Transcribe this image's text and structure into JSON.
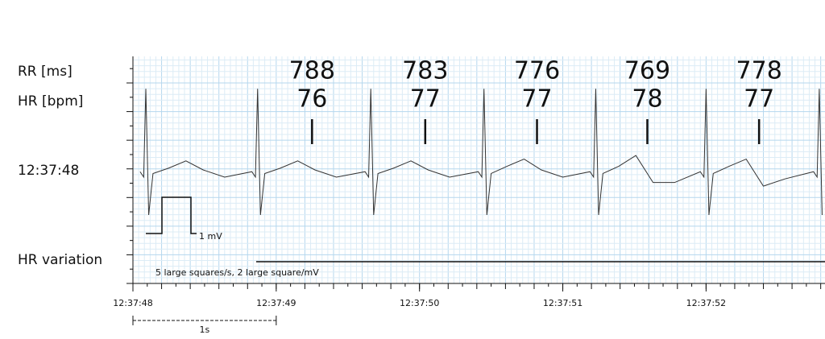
{
  "chart_data": {
    "type": "ecg",
    "row_labels": {
      "rr": "RR [ms]",
      "hr": "HR [bpm]",
      "time": "12:37:48",
      "hr_variation": "HR variation"
    },
    "calibration_label": "1 mV",
    "scale_note": "5 large squares/s, 2 large square/mV",
    "scale_bar_label": "1s",
    "xlim": [
      0,
      4.83
    ],
    "ylim": [
      -3.1,
      3.2
    ],
    "xticks": [
      {
        "value": 0,
        "label": "12:37:48"
      },
      {
        "value": 1,
        "label": "12:37:49"
      },
      {
        "value": 2,
        "label": "12:37:50"
      },
      {
        "value": 3,
        "label": "12:37:51"
      },
      {
        "value": 4,
        "label": "12:37:52"
      }
    ],
    "color": "#333333",
    "grid": true,
    "x": [
      0.05,
      0.075,
      0.09,
      0.11,
      0.14,
      0.25,
      0.37,
      0.49,
      0.64,
      0.83,
      0.855,
      0.87,
      0.89,
      0.92,
      1.03,
      1.15,
      1.27,
      1.42,
      1.62,
      1.645,
      1.66,
      1.68,
      1.71,
      1.82,
      1.94,
      2.06,
      2.21,
      2.41,
      2.435,
      2.45,
      2.47,
      2.5,
      2.61,
      2.73,
      2.85,
      3.0,
      3.19,
      3.215,
      3.23,
      3.25,
      3.28,
      3.39,
      3.51,
      3.63,
      3.78,
      3.96,
      3.985,
      4.0,
      4.02,
      4.05,
      4.16,
      4.28,
      4.4,
      4.55,
      4.75,
      4.775,
      4.79,
      4.81
    ],
    "values": [
      0,
      -0.15,
      2.3,
      -1.2,
      -0.05,
      0.1,
      0.3,
      0.05,
      -0.15,
      0,
      -0.15,
      2.3,
      -1.2,
      -0.05,
      0.1,
      0.3,
      0.05,
      -0.15,
      0,
      -0.15,
      2.3,
      -1.2,
      -0.05,
      0.1,
      0.3,
      0.05,
      -0.15,
      0,
      -0.15,
      2.3,
      -1.2,
      -0.05,
      0.15,
      0.35,
      0.05,
      -0.15,
      0,
      -0.15,
      2.3,
      -1.2,
      -0.05,
      0.15,
      0.45,
      -0.3,
      -0.3,
      0,
      -0.15,
      2.3,
      -1.2,
      -0.05,
      0.15,
      0.35,
      -0.4,
      -0.2,
      0,
      -0.15,
      2.3,
      -1.2
    ],
    "beats": [
      {
        "t": 1.25,
        "rr": 788,
        "hr": 76
      },
      {
        "t": 2.04,
        "rr": 783,
        "hr": 77
      },
      {
        "t": 2.82,
        "rr": 776,
        "hr": 77
      },
      {
        "t": 3.59,
        "rr": 769,
        "hr": 78
      },
      {
        "t": 4.37,
        "rr": 778,
        "hr": 77
      }
    ]
  }
}
